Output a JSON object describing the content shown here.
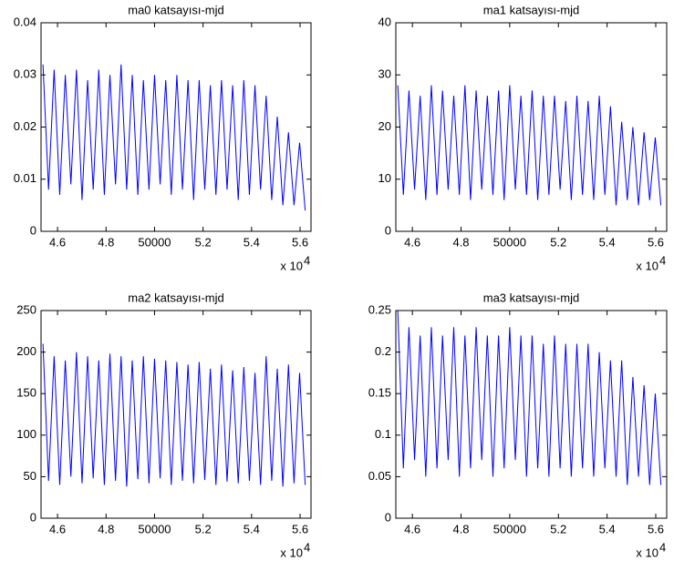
{
  "chart_data": [
    {
      "type": "line",
      "title": "ma0 katsayısı-mjd",
      "color": "#0000ff",
      "x": [
        45400,
        45630,
        45860,
        46090,
        46320,
        46550,
        46780,
        47010,
        47240,
        47470,
        47700,
        47930,
        48160,
        48390,
        48620,
        48850,
        49080,
        49310,
        49540,
        49770,
        50000,
        50230,
        50460,
        50690,
        50920,
        51150,
        51380,
        51610,
        51840,
        52070,
        52300,
        52530,
        52760,
        52990,
        53220,
        53450,
        53680,
        53910,
        54140,
        54370,
        54600,
        54830,
        55060,
        55290,
        55520,
        55750,
        55980,
        56210
      ],
      "values": [
        0.032,
        0.008,
        0.031,
        0.007,
        0.03,
        0.009,
        0.031,
        0.006,
        0.029,
        0.008,
        0.031,
        0.007,
        0.03,
        0.009,
        0.032,
        0.008,
        0.03,
        0.007,
        0.029,
        0.008,
        0.03,
        0.009,
        0.029,
        0.007,
        0.03,
        0.008,
        0.029,
        0.006,
        0.029,
        0.008,
        0.028,
        0.007,
        0.029,
        0.008,
        0.028,
        0.006,
        0.029,
        0.007,
        0.028,
        0.008,
        0.026,
        0.006,
        0.022,
        0.005,
        0.019,
        0.005,
        0.017,
        0.004
      ],
      "xlim": [
        45320,
        56450
      ],
      "ylim": [
        0,
        0.04
      ],
      "xticks": [
        {
          "value": 46000,
          "label": "4.6"
        },
        {
          "value": 48000,
          "label": "4.8"
        },
        50000,
        {
          "value": 52000,
          "label": "5.2"
        },
        {
          "value": 54000,
          "label": "5.4"
        },
        {
          "value": 56000,
          "label": "5.6"
        }
      ],
      "yticks": [
        0,
        0.01,
        0.02,
        0.03,
        0.04
      ],
      "x_scale_label": "x 10",
      "x_scale_exponent": "4"
    },
    {
      "type": "line",
      "title": "ma1 katsayısı-mjd",
      "color": "#0000ff",
      "x": [
        45400,
        45630,
        45860,
        46090,
        46320,
        46550,
        46780,
        47010,
        47240,
        47470,
        47700,
        47930,
        48160,
        48390,
        48620,
        48850,
        49080,
        49310,
        49540,
        49770,
        50000,
        50230,
        50460,
        50690,
        50920,
        51150,
        51380,
        51610,
        51840,
        52070,
        52300,
        52530,
        52760,
        52990,
        53220,
        53450,
        53680,
        53910,
        54140,
        54370,
        54600,
        54830,
        55060,
        55290,
        55520,
        55750,
        55980,
        56210
      ],
      "values": [
        28,
        7,
        27,
        8,
        26,
        6,
        28,
        7,
        27,
        8,
        26,
        7,
        28,
        6,
        27,
        8,
        26,
        7,
        27,
        6,
        28,
        8,
        26,
        7,
        27,
        6,
        26,
        7,
        26,
        8,
        25,
        6,
        26,
        7,
        25,
        6,
        26,
        7,
        24,
        5,
        21,
        6,
        20,
        5,
        19,
        6,
        18,
        5
      ],
      "xlim": [
        45320,
        56450
      ],
      "ylim": [
        0,
        40
      ],
      "xticks": [
        {
          "value": 46000,
          "label": "4.6"
        },
        {
          "value": 48000,
          "label": "4.8"
        },
        50000,
        {
          "value": 52000,
          "label": "5.2"
        },
        {
          "value": 54000,
          "label": "5.4"
        },
        {
          "value": 56000,
          "label": "5.6"
        }
      ],
      "yticks": [
        0,
        10,
        20,
        30,
        40
      ],
      "x_scale_label": "x 10",
      "x_scale_exponent": "4"
    },
    {
      "type": "line",
      "title": "ma2 katsayısı-mjd",
      "color": "#0000ff",
      "x": [
        45400,
        45630,
        45860,
        46090,
        46320,
        46550,
        46780,
        47010,
        47240,
        47470,
        47700,
        47930,
        48160,
        48390,
        48620,
        48850,
        49080,
        49310,
        49540,
        49770,
        50000,
        50230,
        50460,
        50690,
        50920,
        51150,
        51380,
        51610,
        51840,
        52070,
        52300,
        52530,
        52760,
        52990,
        53220,
        53450,
        53680,
        53910,
        54140,
        54370,
        54600,
        54830,
        55060,
        55290,
        55520,
        55750,
        55980,
        56210
      ],
      "values": [
        210,
        45,
        195,
        40,
        190,
        50,
        200,
        42,
        195,
        48,
        190,
        40,
        198,
        45,
        195,
        38,
        190,
        47,
        195,
        42,
        192,
        48,
        190,
        40,
        188,
        45,
        185,
        42,
        188,
        46,
        180,
        40,
        185,
        44,
        178,
        42,
        182,
        45,
        175,
        40,
        195,
        45,
        180,
        38,
        185,
        42,
        175,
        40
      ],
      "xlim": [
        45320,
        56450
      ],
      "ylim": [
        0,
        250
      ],
      "xticks": [
        {
          "value": 46000,
          "label": "4.6"
        },
        {
          "value": 48000,
          "label": "4.8"
        },
        50000,
        {
          "value": 52000,
          "label": "5.2"
        },
        {
          "value": 54000,
          "label": "5.4"
        },
        {
          "value": 56000,
          "label": "5.6"
        }
      ],
      "yticks": [
        0,
        50,
        100,
        150,
        200,
        250
      ],
      "x_scale_label": "x 10",
      "x_scale_exponent": "4"
    },
    {
      "type": "line",
      "title": "ma3 katsayısı-mjd",
      "color": "#0000ff",
      "x": [
        45400,
        45630,
        45860,
        46090,
        46320,
        46550,
        46780,
        47010,
        47240,
        47470,
        47700,
        47930,
        48160,
        48390,
        48620,
        48850,
        49080,
        49310,
        49540,
        49770,
        50000,
        50230,
        50460,
        50690,
        50920,
        51150,
        51380,
        51610,
        51840,
        52070,
        52300,
        52530,
        52760,
        52990,
        53220,
        53450,
        53680,
        53910,
        54140,
        54370,
        54600,
        54830,
        55060,
        55290,
        55520,
        55750,
        55980,
        56210
      ],
      "values": [
        0.25,
        0.06,
        0.23,
        0.07,
        0.22,
        0.05,
        0.23,
        0.06,
        0.22,
        0.07,
        0.23,
        0.05,
        0.22,
        0.06,
        0.23,
        0.07,
        0.22,
        0.05,
        0.22,
        0.06,
        0.23,
        0.07,
        0.22,
        0.05,
        0.22,
        0.06,
        0.21,
        0.05,
        0.22,
        0.06,
        0.21,
        0.05,
        0.21,
        0.06,
        0.21,
        0.05,
        0.2,
        0.06,
        0.19,
        0.05,
        0.19,
        0.04,
        0.17,
        0.05,
        0.16,
        0.04,
        0.15,
        0.04
      ],
      "xlim": [
        45320,
        56450
      ],
      "ylim": [
        0,
        0.25
      ],
      "xticks": [
        {
          "value": 46000,
          "label": "4.6"
        },
        {
          "value": 48000,
          "label": "4.8"
        },
        50000,
        {
          "value": 52000,
          "label": "5.2"
        },
        {
          "value": 54000,
          "label": "5.4"
        },
        {
          "value": 56000,
          "label": "5.6"
        }
      ],
      "yticks": [
        0,
        0.05,
        0.1,
        0.15,
        0.2,
        0.25
      ],
      "x_scale_label": "x 10",
      "x_scale_exponent": "4"
    }
  ]
}
